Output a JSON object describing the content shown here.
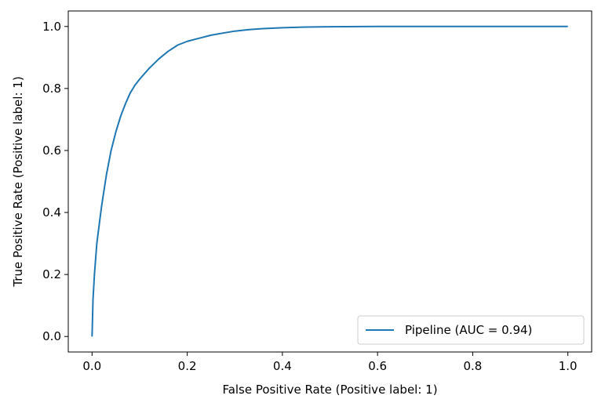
{
  "chart_data": {
    "type": "line",
    "xlabel": "False Positive Rate (Positive label: 1)",
    "ylabel": "True Positive Rate (Positive label: 1)",
    "xlim": [
      -0.05,
      1.05
    ],
    "ylim": [
      -0.05,
      1.05
    ],
    "xticks": [
      0.0,
      0.2,
      0.4,
      0.6,
      0.8,
      1.0
    ],
    "yticks": [
      0.0,
      0.2,
      0.4,
      0.6,
      0.8,
      1.0
    ],
    "xtick_labels": [
      "0.0",
      "0.2",
      "0.4",
      "0.6",
      "0.8",
      "1.0"
    ],
    "ytick_labels": [
      "0.0",
      "0.2",
      "0.4",
      "0.6",
      "0.8",
      "1.0"
    ],
    "grid": false,
    "legend": {
      "position": "lower-right"
    },
    "series": [
      {
        "name": "Pipeline (AUC = 0.94)",
        "color": "#1f77b4",
        "x": [
          0.0,
          0.002,
          0.005,
          0.01,
          0.015,
          0.02,
          0.03,
          0.04,
          0.05,
          0.06,
          0.07,
          0.08,
          0.09,
          0.1,
          0.12,
          0.14,
          0.16,
          0.18,
          0.2,
          0.22,
          0.25,
          0.28,
          0.3,
          0.33,
          0.36,
          0.4,
          0.45,
          0.5,
          0.6,
          0.7,
          0.8,
          0.9,
          1.0
        ],
        "y": [
          0.0,
          0.12,
          0.2,
          0.3,
          0.36,
          0.42,
          0.52,
          0.6,
          0.66,
          0.71,
          0.75,
          0.785,
          0.81,
          0.83,
          0.865,
          0.895,
          0.92,
          0.94,
          0.952,
          0.96,
          0.972,
          0.98,
          0.985,
          0.99,
          0.993,
          0.996,
          0.998,
          0.999,
          1.0,
          1.0,
          1.0,
          1.0,
          1.0
        ]
      }
    ]
  }
}
